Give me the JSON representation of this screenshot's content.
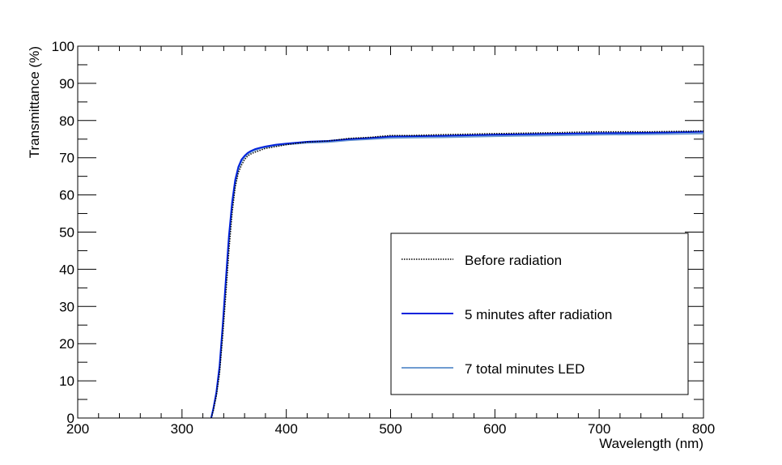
{
  "chart_data": {
    "type": "line",
    "title": "",
    "xlabel": "Wavelength (nm)",
    "ylabel": "Transmittance (%)",
    "xlim": [
      200,
      800
    ],
    "ylim": [
      0,
      100
    ],
    "x_ticks": [
      200,
      300,
      400,
      500,
      600,
      700,
      800
    ],
    "y_ticks": [
      0,
      10,
      20,
      30,
      40,
      50,
      60,
      70,
      80,
      90,
      100
    ],
    "x_tick_labels": [
      "200",
      "300",
      "400",
      "500",
      "600",
      "700",
      "800"
    ],
    "y_tick_labels": [
      "0",
      "10",
      "20",
      "30",
      "40",
      "50",
      "60",
      "70",
      "80",
      "90",
      "100"
    ],
    "grid": false,
    "legend_position": "bottom-right",
    "series": [
      {
        "name": "Before radiation",
        "color": "#000000",
        "style": "dotted",
        "x": [
          328,
          330,
          333,
          336,
          339,
          342,
          345,
          348,
          351,
          354,
          357,
          360,
          363,
          366,
          370,
          375,
          380,
          390,
          400,
          420,
          440,
          460,
          480,
          500,
          520,
          550,
          600,
          650,
          700,
          750,
          800
        ],
        "y": [
          0,
          2,
          6,
          12,
          22,
          33,
          45,
          55,
          62,
          66,
          68,
          69.5,
          70.5,
          71,
          71.5,
          72,
          72.5,
          73,
          73.5,
          74.2,
          74.5,
          75.2,
          75.5,
          76,
          76,
          76.2,
          76.5,
          76.7,
          77,
          77,
          77.2
        ]
      },
      {
        "name": "5 minutes after radiation",
        "color": "#0022dd",
        "style": "solid",
        "x": [
          328,
          330,
          333,
          336,
          339,
          342,
          345,
          348,
          351,
          354,
          357,
          360,
          363,
          366,
          370,
          375,
          380,
          390,
          400,
          420,
          440,
          460,
          480,
          500,
          520,
          550,
          600,
          650,
          700,
          750,
          800
        ],
        "y": [
          0,
          2.5,
          7,
          14,
          25,
          37,
          49,
          58,
          64,
          67.5,
          69.5,
          70.5,
          71.3,
          71.8,
          72.3,
          72.7,
          73,
          73.5,
          73.8,
          74.3,
          74.5,
          75,
          75.3,
          75.7,
          75.8,
          75.9,
          76.2,
          76.4,
          76.6,
          76.7,
          77
        ]
      },
      {
        "name": "7 total minutes LED",
        "color": "#6f9bd1",
        "style": "solid",
        "x": [
          328,
          330,
          333,
          336,
          339,
          342,
          345,
          348,
          351,
          354,
          357,
          360,
          363,
          366,
          370,
          375,
          380,
          390,
          400,
          420,
          440,
          460,
          480,
          500,
          520,
          550,
          600,
          650,
          700,
          750,
          800
        ],
        "y": [
          0,
          2.3,
          6.5,
          13,
          24,
          36,
          48,
          57,
          63,
          67,
          69,
          70.2,
          71,
          71.5,
          72,
          72.5,
          72.8,
          73.3,
          73.6,
          74,
          74.2,
          74.7,
          75,
          75.3,
          75.4,
          75.5,
          75.8,
          76,
          76.2,
          76.3,
          76.5
        ]
      }
    ]
  }
}
